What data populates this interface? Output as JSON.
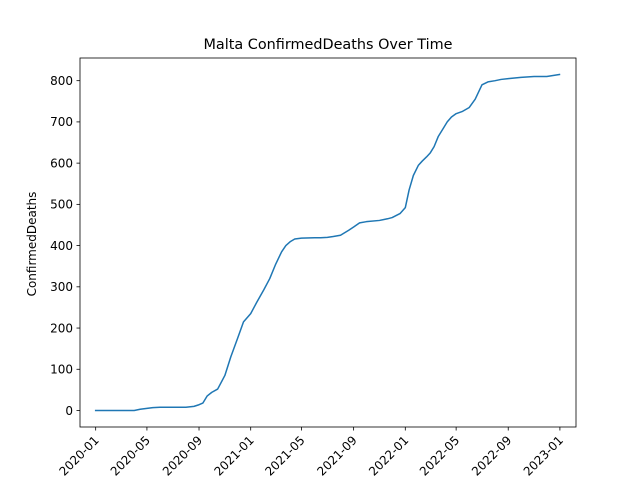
{
  "chart_data": {
    "type": "line",
    "title": "Malta  ConfirmedDeaths Over Time",
    "xlabel": "",
    "ylabel": "ConfirmedDeaths",
    "xlim": [
      "2019-11-25",
      "2023-02-08"
    ],
    "ylim": [
      -40,
      855
    ],
    "grid": false,
    "legend": "none",
    "line_color": "#1f77b4",
    "x_ticks": [
      "2020-01",
      "2020-05",
      "2020-09",
      "2021-01",
      "2021-05",
      "2021-09",
      "2022-01",
      "2022-05",
      "2022-09",
      "2023-01"
    ],
    "y_ticks": [
      0,
      100,
      200,
      300,
      400,
      500,
      600,
      700,
      800
    ],
    "series": [
      {
        "x": [
          "2020-01-01",
          "2020-03-01",
          "2020-04-01",
          "2020-04-15",
          "2020-05-15",
          "2020-06-01",
          "2020-08-01",
          "2020-08-20",
          "2020-09-01",
          "2020-09-10",
          "2020-09-20",
          "2020-10-01",
          "2020-10-15",
          "2020-11-01",
          "2020-11-15",
          "2020-12-01",
          "2020-12-15",
          "2021-01-01",
          "2021-01-15",
          "2021-02-01",
          "2021-02-15",
          "2021-03-01",
          "2021-03-15",
          "2021-03-25",
          "2021-04-05",
          "2021-04-15",
          "2021-05-01",
          "2021-06-01",
          "2021-06-15",
          "2021-07-01",
          "2021-07-15",
          "2021-08-01",
          "2021-08-20",
          "2021-09-01",
          "2021-09-15",
          "2021-10-01",
          "2021-11-01",
          "2021-11-20",
          "2021-12-01",
          "2021-12-20",
          "2022-01-01",
          "2022-01-10",
          "2022-01-20",
          "2022-02-01",
          "2022-02-10",
          "2022-02-20",
          "2022-03-01",
          "2022-03-10",
          "2022-03-20",
          "2022-04-01",
          "2022-04-10",
          "2022-04-20",
          "2022-05-01",
          "2022-05-15",
          "2022-06-01",
          "2022-06-15",
          "2022-07-01",
          "2022-07-15",
          "2022-08-01",
          "2022-08-15",
          "2022-09-01",
          "2022-10-01",
          "2022-11-01",
          "2022-12-01",
          "2022-12-31"
        ],
        "values": [
          0,
          0,
          0,
          3,
          7,
          8,
          8,
          10,
          14,
          18,
          35,
          44,
          52,
          85,
          130,
          175,
          215,
          235,
          262,
          293,
          320,
          355,
          385,
          400,
          410,
          416,
          418,
          419,
          419,
          420,
          422,
          425,
          437,
          445,
          455,
          458,
          461,
          465,
          468,
          478,
          492,
          535,
          570,
          595,
          605,
          615,
          625,
          640,
          665,
          685,
          700,
          712,
          720,
          725,
          735,
          755,
          790,
          797,
          800,
          803,
          805,
          808,
          810,
          810,
          815
        ]
      }
    ]
  }
}
